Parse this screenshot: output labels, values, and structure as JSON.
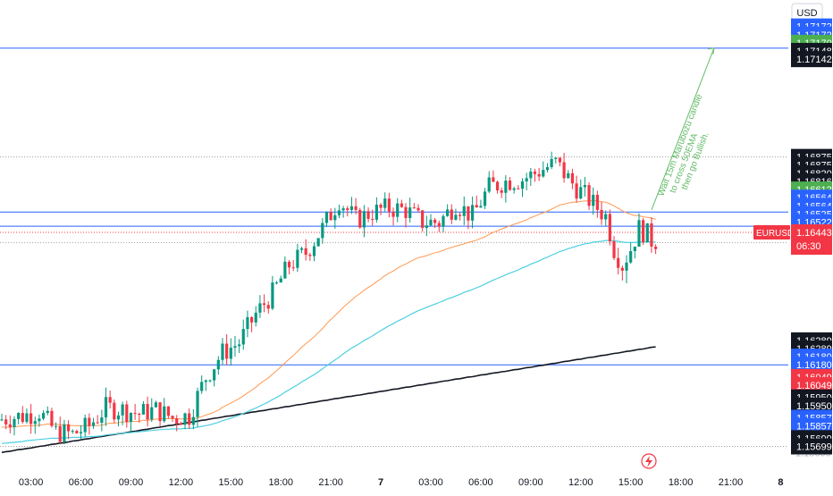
{
  "currency_label": "USD",
  "symbol_badge": {
    "symbol": "EURUSD",
    "countdown": "06:30",
    "color": "#f23645"
  },
  "colors": {
    "up": "#089981",
    "down": "#f23645",
    "ema_fast": "#ff9850",
    "ema_mid": "#4dd0e1",
    "ema_slow": "#131722",
    "level_line": "#2962ff",
    "dotted_line": "#9e9e9e",
    "annotation": "#66bb6a"
  },
  "price_labels": [
    {
      "text": "1.17172",
      "price": 1.17195,
      "bg": "#2962ff"
    },
    {
      "text": "1.17172",
      "price": 1.17175,
      "bg": "#2962ff"
    },
    {
      "text": "1.17170",
      "price": 1.17155,
      "bg": "#4caf50"
    },
    {
      "text": "1.17148",
      "price": 1.17135,
      "bg": "#131722"
    },
    {
      "text": "1.17142",
      "price": 1.17115,
      "bg": "#131722"
    },
    {
      "text": "1.16875",
      "price": 1.16875,
      "bg": "#131722"
    },
    {
      "text": "1.16875",
      "price": 1.16855,
      "bg": "#131722"
    },
    {
      "text": "1.16820",
      "price": 1.16835,
      "bg": "#131722"
    },
    {
      "text": "1.16816",
      "price": 1.16815,
      "bg": "#131722"
    },
    {
      "text": "1.16612",
      "price": 1.16795,
      "bg": "#4caf50"
    },
    {
      "text": "1.16564",
      "price": 1.16775,
      "bg": "#2962ff"
    },
    {
      "text": "1.16564",
      "price": 1.16755,
      "bg": "#2962ff"
    },
    {
      "text": "1.16525",
      "price": 1.16735,
      "bg": "#2962ff"
    },
    {
      "text": "1.16522",
      "price": 1.16715,
      "bg": "#2962ff"
    },
    {
      "text": "1.16289",
      "price": 1.16425,
      "bg": "#131722"
    },
    {
      "text": "1.16289",
      "price": 1.16405,
      "bg": "#131722"
    },
    {
      "text": "1.16180",
      "price": 1.16385,
      "bg": "#2962ff"
    },
    {
      "text": "1.16180",
      "price": 1.16365,
      "bg": "#2962ff"
    },
    {
      "text": "1.16049",
      "price": 1.16335,
      "bg": "#f23645"
    },
    {
      "text": "1.16049",
      "price": 1.16315,
      "bg": "#f23645"
    },
    {
      "text": "1.15950",
      "price": 1.16285,
      "bg": "#131722"
    },
    {
      "text": "1.15950",
      "price": 1.16265,
      "bg": "#131722"
    },
    {
      "text": "1.15857",
      "price": 1.16235,
      "bg": "#2962ff"
    },
    {
      "text": "1.15857",
      "price": 1.16215,
      "bg": "#2962ff"
    },
    {
      "text": "1.15699",
      "price": 1.16185,
      "bg": "#131722"
    },
    {
      "text": "1.15699",
      "price": 1.16165,
      "bg": "#131722"
    }
  ],
  "price_ticks": [
    {
      "text": "1.15600",
      "price": 1.1615
    }
  ],
  "time_labels": [
    {
      "text": "03:00",
      "x_bar": 7
    },
    {
      "text": "06:00",
      "x_bar": 19
    },
    {
      "text": "09:00",
      "x_bar": 31
    },
    {
      "text": "12:00",
      "x_bar": 43
    },
    {
      "text": "15:00",
      "x_bar": 55
    },
    {
      "text": "18:00",
      "x_bar": 67
    },
    {
      "text": "21:00",
      "x_bar": 79
    },
    {
      "text": "7",
      "x_bar": 91,
      "bold": true
    },
    {
      "text": "03:00",
      "x_bar": 103
    },
    {
      "text": "06:00",
      "x_bar": 115
    },
    {
      "text": "09:00",
      "x_bar": 127
    },
    {
      "text": "12:00",
      "x_bar": 139
    },
    {
      "text": "15:00",
      "x_bar": 151
    },
    {
      "text": "18:00",
      "x_bar": 163
    },
    {
      "text": "21:00",
      "x_bar": 175
    },
    {
      "text": "8",
      "x_bar": 187,
      "bold": true
    }
  ],
  "annotation": {
    "lines": [
      "Wait 15m Marubozu candle",
      "to cross 50EMA",
      "then go Bullish."
    ]
  },
  "chart_data": {
    "type": "candlestick",
    "symbol": "EURUSD",
    "interval": "15m",
    "bar_count": 188,
    "ohlc": [],
    "horizontal_levels": [
      {
        "price": 1.17142,
        "style": "solid"
      },
      {
        "price": 1.16875,
        "style": "dotted"
      },
      {
        "price": 1.1674,
        "style": "solid"
      },
      {
        "price": 1.16705,
        "style": "solid"
      },
      {
        "price": 1.16665,
        "style": "dotted"
      },
      {
        "price": 1.16365,
        "style": "solid"
      },
      {
        "price": 1.16165,
        "style": "dotted"
      }
    ],
    "ema_50": [],
    "ema_100": [],
    "ema_200": [],
    "arrow": {
      "from_bar": 156,
      "from_price": 1.16745,
      "to_bar": 171,
      "to_price": 1.17142
    },
    "ylim": [
      1.1612,
      1.1726
    ]
  }
}
